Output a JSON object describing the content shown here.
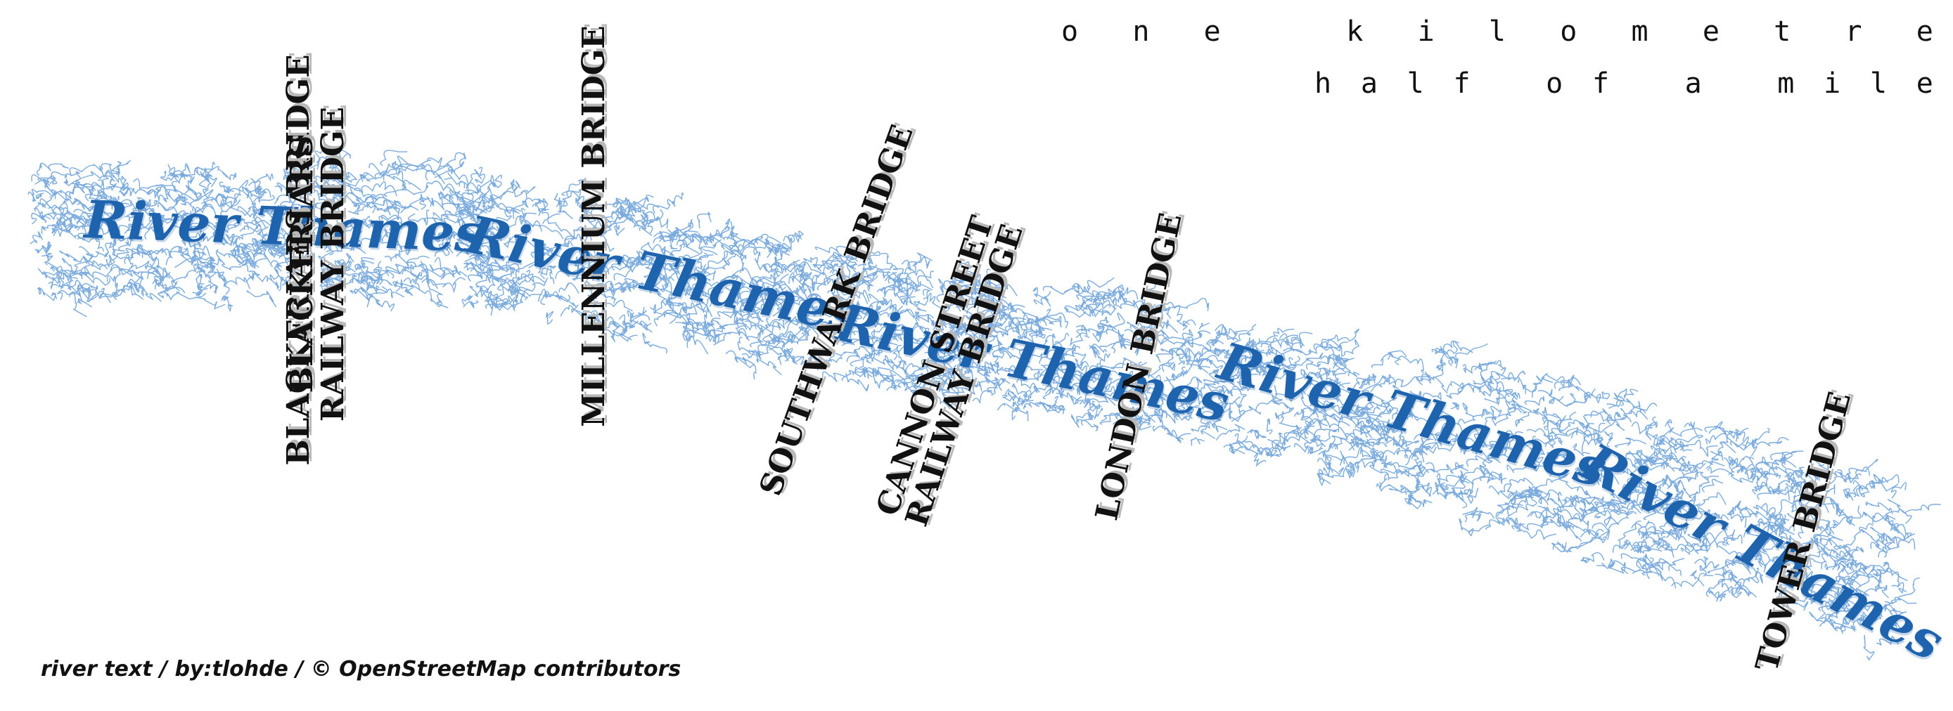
{
  "map": {
    "river_color": "#1e63ad",
    "river_scribble_color": "#4f8fd2",
    "river_labels": [
      "River Thames",
      "River Thames",
      "River Thames",
      "River Thames",
      "River Thames"
    ],
    "bridges": [
      {
        "label": "BLACKFRIARS BRIDGE"
      },
      {
        "label": "BLACKFRIARS\nRAILWAY BRIDGE"
      },
      {
        "label": "MILLENNIUM BRIDGE"
      },
      {
        "label": "SOUTHWARK BRIDGE"
      },
      {
        "label": "CANNON STREET\nRAILWAY BRIDGE"
      },
      {
        "label": "LONDON BRIDGE"
      },
      {
        "label": "TOWER BRIDGE"
      }
    ]
  },
  "scale": {
    "km_label": "one kilometre",
    "mi_label": "half of a mile"
  },
  "attribution": "river text / by:tlohde / © OpenStreetMap contributors"
}
